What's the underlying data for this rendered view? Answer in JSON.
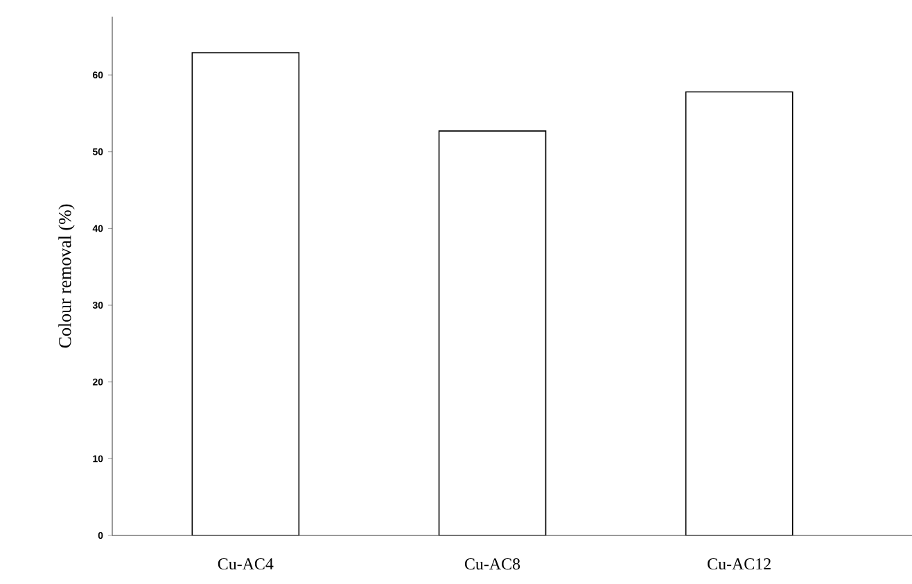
{
  "chart_data": {
    "type": "bar",
    "ylabel": "Colour removal (%)",
    "categories": [
      "Cu-AC4",
      "Cu-AC8",
      "Cu-AC12"
    ],
    "values": [
      62.9,
      52.7,
      57.8
    ],
    "color": "#ffffff",
    "ylim": [
      0,
      67.6
    ],
    "yticks": [
      0,
      10,
      20,
      30,
      40,
      50,
      60
    ],
    "grid": false
  }
}
